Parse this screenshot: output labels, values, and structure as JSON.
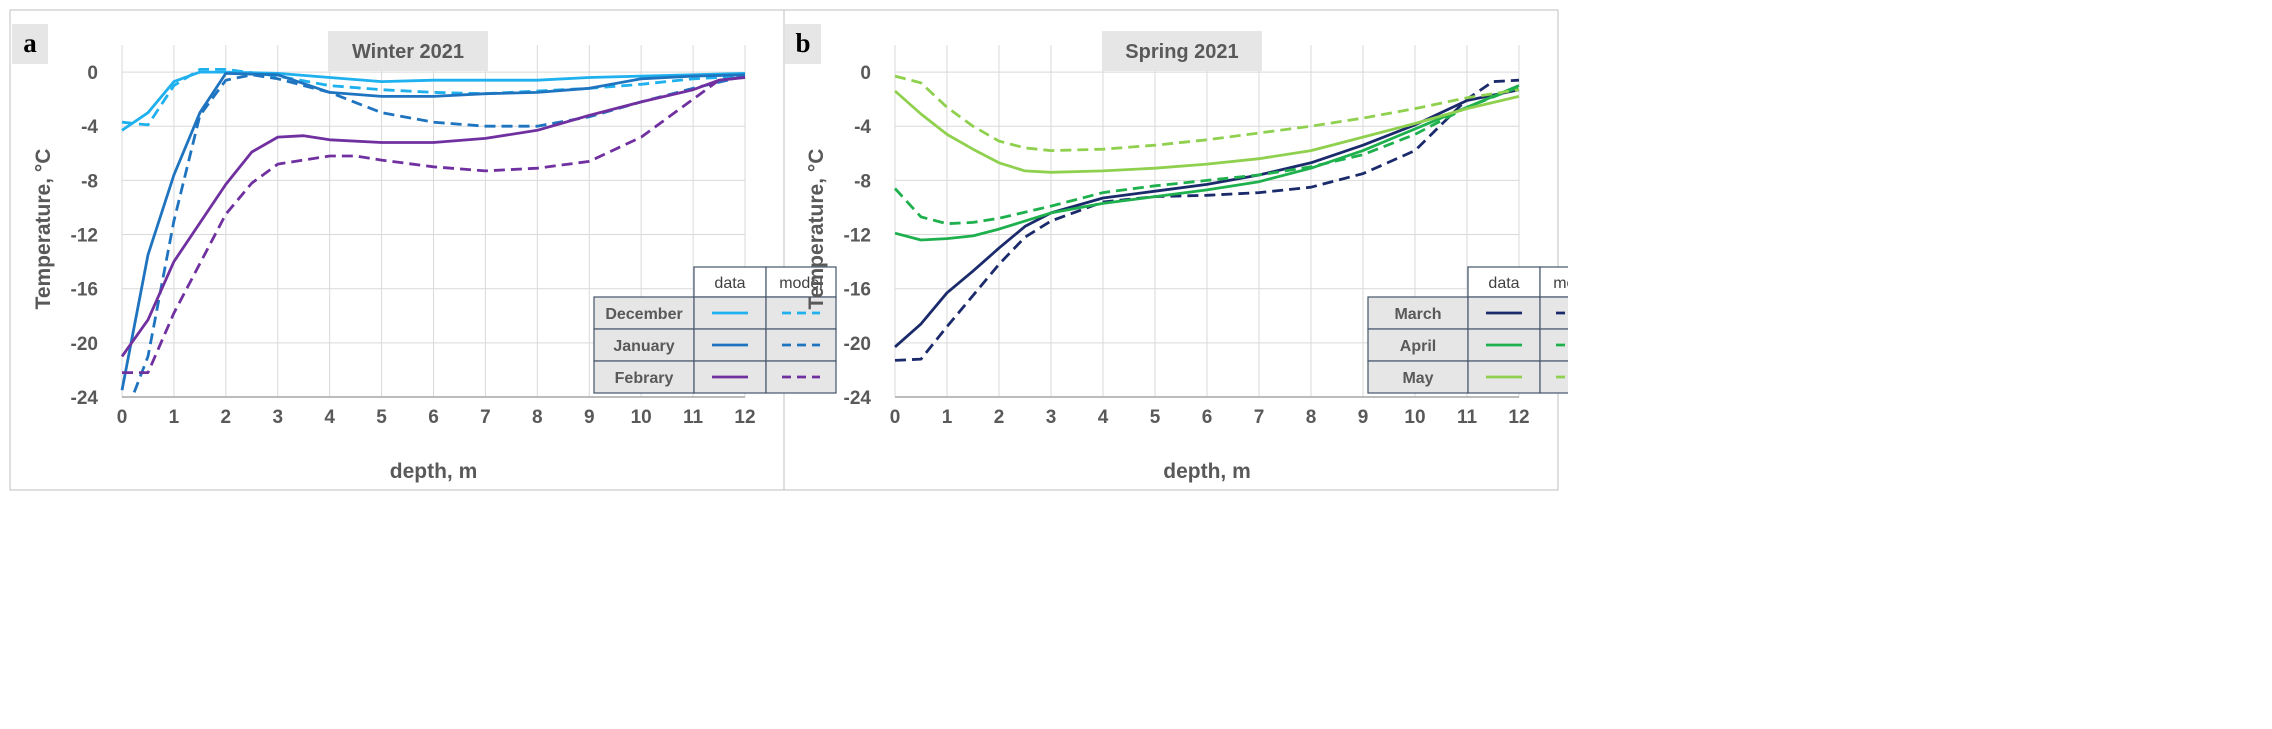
{
  "chart_data": [
    {
      "type": "line",
      "panel_label": "a",
      "title": "Winter 2021",
      "xlabel": "depth, m",
      "ylabel": "Temperature, °C",
      "xlim": [
        0,
        12
      ],
      "ylim": [
        -24,
        2
      ],
      "x_ticks": [
        "0",
        "1",
        "2",
        "3",
        "4",
        "5",
        "6",
        "7",
        "8",
        "9",
        "10",
        "11",
        "12"
      ],
      "y_ticks": [
        "0",
        "-4",
        "-8",
        "-12",
        "-16",
        "-20",
        "-24"
      ],
      "y_tick_values": [
        0,
        -4,
        -8,
        -12,
        -16,
        -20,
        -24
      ],
      "grid": true,
      "legend": {
        "placement": "bottom-right",
        "col_headers": [
          "data",
          "model"
        ],
        "rows": [
          "December",
          "January",
          "Febrary"
        ]
      },
      "series": [
        {
          "name": "December",
          "kind": "data",
          "color": "#1fb0ee",
          "dashed": false,
          "points": [
            [
              0,
              -4.3
            ],
            [
              0.5,
              -3
            ],
            [
              1,
              -0.7
            ],
            [
              1.5,
              0
            ],
            [
              2,
              0
            ],
            [
              3,
              -0.1
            ],
            [
              4,
              -0.4
            ],
            [
              5,
              -0.7
            ],
            [
              6,
              -0.6
            ],
            [
              7,
              -0.6
            ],
            [
              8,
              -0.6
            ],
            [
              9,
              -0.4
            ],
            [
              10,
              -0.3
            ],
            [
              11,
              -0.2
            ],
            [
              12,
              -0.1
            ]
          ]
        },
        {
          "name": "December",
          "kind": "model",
          "color": "#1fb0ee",
          "dashed": true,
          "points": [
            [
              0,
              -3.7
            ],
            [
              0.5,
              -3.9
            ],
            [
              1,
              -1
            ],
            [
              1.5,
              0.2
            ],
            [
              2,
              0.2
            ],
            [
              3,
              -0.3
            ],
            [
              4,
              -1
            ],
            [
              5,
              -1.3
            ],
            [
              6,
              -1.5
            ],
            [
              7,
              -1.6
            ],
            [
              8,
              -1.4
            ],
            [
              9,
              -1.2
            ],
            [
              10,
              -0.9
            ],
            [
              11,
              -0.5
            ],
            [
              12,
              -0.3
            ]
          ]
        },
        {
          "name": "January",
          "kind": "data",
          "color": "#1f74c0",
          "dashed": false,
          "points": [
            [
              0,
              -23.5
            ],
            [
              0.5,
              -13.5
            ],
            [
              1,
              -7.6
            ],
            [
              1.5,
              -3
            ],
            [
              2,
              -0.1
            ],
            [
              3,
              -0.2
            ],
            [
              4,
              -1.5
            ],
            [
              5,
              -1.8
            ],
            [
              6,
              -1.8
            ],
            [
              7,
              -1.6
            ],
            [
              8,
              -1.5
            ],
            [
              9,
              -1.2
            ],
            [
              10,
              -0.5
            ],
            [
              11,
              -0.3
            ],
            [
              12,
              -0.2
            ]
          ]
        },
        {
          "name": "January",
          "kind": "model",
          "color": "#1f74c0",
          "dashed": true,
          "points": [
            [
              0,
              -26
            ],
            [
              0.5,
              -21
            ],
            [
              1,
              -11
            ],
            [
              1.5,
              -3.2
            ],
            [
              2,
              -0.6
            ],
            [
              2.5,
              -0.2
            ],
            [
              3,
              -0.5
            ],
            [
              4,
              -1.5
            ],
            [
              5,
              -3
            ],
            [
              6,
              -3.7
            ],
            [
              7,
              -4
            ],
            [
              8,
              -4
            ],
            [
              9,
              -3.3
            ],
            [
              10,
              -2.2
            ],
            [
              11,
              -1.2
            ],
            [
              12,
              -0.3
            ]
          ]
        },
        {
          "name": "Febrary",
          "kind": "data",
          "color": "#7030a0",
          "dashed": false,
          "points": [
            [
              0,
              -21
            ],
            [
              0.5,
              -18.3
            ],
            [
              1,
              -14
            ],
            [
              2,
              -8.3
            ],
            [
              2.5,
              -5.9
            ],
            [
              3,
              -4.8
            ],
            [
              3.5,
              -4.7
            ],
            [
              4,
              -5
            ],
            [
              5,
              -5.2
            ],
            [
              6,
              -5.2
            ],
            [
              7,
              -4.9
            ],
            [
              8,
              -4.3
            ],
            [
              9,
              -3.2
            ],
            [
              10,
              -2.2
            ],
            [
              11,
              -1.3
            ],
            [
              11.5,
              -0.6
            ],
            [
              12,
              -0.4
            ]
          ]
        },
        {
          "name": "Febrary",
          "kind": "model",
          "color": "#7030a0",
          "dashed": true,
          "points": [
            [
              0,
              -22.2
            ],
            [
              0.5,
              -22.2
            ],
            [
              1,
              -17.8
            ],
            [
              2,
              -10.5
            ],
            [
              2.5,
              -8.2
            ],
            [
              3,
              -6.8
            ],
            [
              4,
              -6.2
            ],
            [
              4.5,
              -6.2
            ],
            [
              5,
              -6.5
            ],
            [
              6,
              -7
            ],
            [
              7,
              -7.3
            ],
            [
              8,
              -7.1
            ],
            [
              9,
              -6.6
            ],
            [
              10,
              -4.8
            ],
            [
              11,
              -2
            ],
            [
              11.5,
              -0.6
            ],
            [
              12,
              -0.4
            ]
          ]
        }
      ]
    },
    {
      "type": "line",
      "panel_label": "b",
      "title": "Spring 2021",
      "xlabel": "depth, m",
      "ylabel": "Temperature, °C",
      "xlim": [
        0,
        12
      ],
      "ylim": [
        -24,
        2
      ],
      "x_ticks": [
        "0",
        "1",
        "2",
        "3",
        "4",
        "5",
        "6",
        "7",
        "8",
        "9",
        "10",
        "11",
        "12"
      ],
      "y_ticks": [
        "0",
        "-4",
        "-8",
        "-12",
        "-16",
        "-20",
        "-24"
      ],
      "y_tick_values": [
        0,
        -4,
        -8,
        -12,
        -16,
        -20,
        -24
      ],
      "grid": true,
      "legend": {
        "placement": "bottom-right",
        "col_headers": [
          "data",
          "model"
        ],
        "rows": [
          "March",
          "April",
          "May"
        ]
      },
      "series": [
        {
          "name": "March",
          "kind": "data",
          "color": "#1b2a6b",
          "dashed": false,
          "points": [
            [
              0,
              -20.3
            ],
            [
              0.5,
              -18.6
            ],
            [
              1,
              -16.3
            ],
            [
              1.5,
              -14.7
            ],
            [
              2,
              -13
            ],
            [
              2.5,
              -11.4
            ],
            [
              3,
              -10.4
            ],
            [
              4,
              -9.3
            ],
            [
              5,
              -8.8
            ],
            [
              6,
              -8.3
            ],
            [
              7,
              -7.6
            ],
            [
              8,
              -6.7
            ],
            [
              9,
              -5.4
            ],
            [
              10,
              -3.9
            ],
            [
              11,
              -2.1
            ],
            [
              12,
              -1.3
            ]
          ]
        },
        {
          "name": "March",
          "kind": "model",
          "color": "#1b2a6b",
          "dashed": true,
          "points": [
            [
              0,
              -21.3
            ],
            [
              0.5,
              -21.2
            ],
            [
              1,
              -18.8
            ],
            [
              1.5,
              -16.5
            ],
            [
              2,
              -14.2
            ],
            [
              2.5,
              -12.2
            ],
            [
              3,
              -11
            ],
            [
              4,
              -9.6
            ],
            [
              5,
              -9.2
            ],
            [
              6,
              -9.1
            ],
            [
              7,
              -8.9
            ],
            [
              8,
              -8.5
            ],
            [
              9,
              -7.5
            ],
            [
              10,
              -5.8
            ],
            [
              11,
              -2
            ],
            [
              11.5,
              -0.7
            ],
            [
              12,
              -0.6
            ]
          ]
        },
        {
          "name": "April",
          "kind": "data",
          "color": "#1fb04e",
          "dashed": false,
          "points": [
            [
              0,
              -11.9
            ],
            [
              0.5,
              -12.4
            ],
            [
              1,
              -12.3
            ],
            [
              1.5,
              -12.1
            ],
            [
              2,
              -11.6
            ],
            [
              3,
              -10.4
            ],
            [
              4,
              -9.7
            ],
            [
              5,
              -9.2
            ],
            [
              6,
              -8.7
            ],
            [
              7,
              -8.1
            ],
            [
              8,
              -7.1
            ],
            [
              9,
              -5.8
            ],
            [
              10,
              -4.2
            ],
            [
              11,
              -2.6
            ],
            [
              12,
              -1
            ]
          ]
        },
        {
          "name": "April",
          "kind": "model",
          "color": "#1fb04e",
          "dashed": true,
          "points": [
            [
              0,
              -8.6
            ],
            [
              0.5,
              -10.7
            ],
            [
              1,
              -11.2
            ],
            [
              1.5,
              -11.1
            ],
            [
              2,
              -10.8
            ],
            [
              3,
              -9.9
            ],
            [
              4,
              -8.9
            ],
            [
              5,
              -8.4
            ],
            [
              6,
              -8
            ],
            [
              7,
              -7.6
            ],
            [
              8,
              -7
            ],
            [
              9,
              -6.1
            ],
            [
              10,
              -4.6
            ],
            [
              11,
              -2.6
            ],
            [
              12,
              -1.1
            ]
          ]
        },
        {
          "name": "May",
          "kind": "data",
          "color": "#8fd14f",
          "dashed": false,
          "points": [
            [
              0,
              -1.4
            ],
            [
              0.5,
              -3.1
            ],
            [
              1,
              -4.6
            ],
            [
              1.5,
              -5.7
            ],
            [
              2,
              -6.7
            ],
            [
              2.5,
              -7.3
            ],
            [
              3,
              -7.4
            ],
            [
              4,
              -7.3
            ],
            [
              5,
              -7.1
            ],
            [
              6,
              -6.8
            ],
            [
              7,
              -6.4
            ],
            [
              8,
              -5.8
            ],
            [
              9,
              -4.8
            ],
            [
              10,
              -3.8
            ],
            [
              11,
              -2.7
            ],
            [
              12,
              -1.8
            ]
          ]
        },
        {
          "name": "May",
          "kind": "model",
          "color": "#8fd14f",
          "dashed": true,
          "points": [
            [
              0,
              -0.3
            ],
            [
              0.5,
              -0.8
            ],
            [
              1,
              -2.6
            ],
            [
              1.5,
              -4
            ],
            [
              2,
              -5.1
            ],
            [
              2.5,
              -5.6
            ],
            [
              3,
              -5.8
            ],
            [
              4,
              -5.7
            ],
            [
              5,
              -5.4
            ],
            [
              6,
              -5
            ],
            [
              7,
              -4.5
            ],
            [
              8,
              -4
            ],
            [
              9,
              -3.4
            ],
            [
              10,
              -2.7
            ],
            [
              11,
              -1.9
            ],
            [
              12,
              -1.3
            ]
          ]
        }
      ]
    }
  ]
}
